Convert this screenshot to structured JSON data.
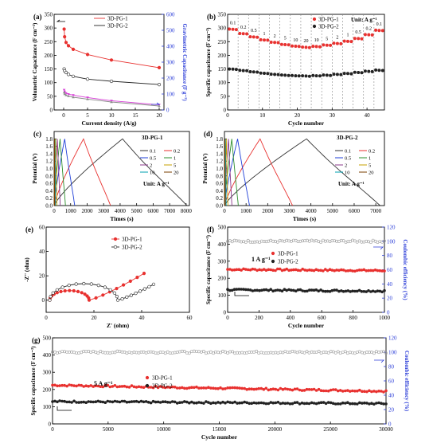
{
  "chart_data": [
    {
      "panel": "(a)",
      "type": "line",
      "xlabel": "Current density (A/g)",
      "ylabel": "Volumetric Capacitance (F cm⁻³)",
      "y2label": "Gravimetric Capacitance (F g⁻¹)",
      "xlim": [
        -2,
        21
      ],
      "ylim": [
        0,
        350
      ],
      "y2lim": [
        0,
        600
      ],
      "xticks": [
        0,
        5,
        10,
        15,
        20
      ],
      "yticks": [
        0,
        50,
        100,
        150,
        200,
        250,
        300,
        350
      ],
      "y2ticks": [
        0,
        100,
        200,
        300,
        400,
        500,
        600
      ],
      "legend": [
        "3D-PG-1",
        "3D-PG-2"
      ],
      "legend_position": "top",
      "series": [
        {
          "name": "3D-PG-1",
          "axis": "left",
          "color": "#e8312f",
          "x": [
            0.1,
            0.2,
            0.5,
            1,
            2,
            5,
            10,
            20
          ],
          "y": [
            296,
            268,
            247,
            235,
            222,
            203,
            183,
            155
          ]
        },
        {
          "name": "3D-PG-2",
          "axis": "left",
          "color": "#222222",
          "x": [
            0.1,
            0.2,
            0.5,
            1,
            2,
            5,
            10,
            20
          ],
          "y": [
            150,
            143,
            137,
            130,
            123,
            113,
            105,
            93
          ]
        },
        {
          "name": "3D-PG-1",
          "axis": "right",
          "color": "#d63bd6",
          "x": [
            0.1,
            0.2,
            0.5,
            1,
            2,
            5,
            10,
            20
          ],
          "y": [
            126,
            115,
            105,
            99,
            93,
            78,
            58,
            32
          ]
        },
        {
          "name": "3D-PG-2",
          "axis": "right",
          "color": "#8a8a8a",
          "x": [
            0.1,
            0.2,
            0.5,
            1,
            2,
            5,
            10,
            20
          ],
          "y": [
            110,
            100,
            93,
            87,
            80,
            68,
            50,
            25
          ]
        }
      ]
    },
    {
      "panel": "(b)",
      "type": "scatter",
      "xlabel": "Cycle number",
      "ylabel": "Specific capacitance (F cm⁻³)",
      "xlim": [
        0,
        45
      ],
      "ylim": [
        0,
        350
      ],
      "xticks": [
        0,
        10,
        20,
        30,
        40
      ],
      "yticks": [
        0,
        50,
        100,
        150,
        200,
        250,
        300,
        350
      ],
      "legend": [
        "3D-PG-1",
        "3D-PG-2"
      ],
      "legend_position": "top-right",
      "annotation": "Unit: A g⁻¹",
      "rate_labels": [
        "0.1",
        "0.2",
        "0.5",
        "1",
        "2",
        "5",
        "10",
        "20",
        "10",
        "5",
        "2",
        "1",
        "0.5",
        "0.2",
        "0.1"
      ],
      "series": [
        {
          "name": "3D-PG-1",
          "color": "#e8312f",
          "y_per_step": [
            296,
            280,
            268,
            257,
            248,
            240,
            234,
            230,
            233,
            238,
            244,
            252,
            262,
            276,
            292
          ]
        },
        {
          "name": "3D-PG-2",
          "color": "#222222",
          "y_per_step": [
            150,
            145,
            140,
            135,
            131,
            128,
            126,
            125,
            126,
            128,
            131,
            134,
            138,
            142,
            146
          ]
        }
      ]
    },
    {
      "panel": "(c)",
      "type": "line",
      "title": "3D-PG-1",
      "xlabel": "Times (s)",
      "ylabel": "Potential (V)",
      "xlim": [
        0,
        8200
      ],
      "ylim": [
        0,
        2.0
      ],
      "xticks": [
        0,
        1000,
        2000,
        3000,
        4000,
        5000,
        6000,
        7000,
        8000
      ],
      "yticks": [
        0.0,
        0.2,
        0.4,
        0.6,
        0.8,
        1.0,
        1.2,
        1.4,
        1.6,
        1.8
      ],
      "legend": [
        "0.1",
        "0.2",
        "0.5",
        "1",
        "2",
        "5",
        "10",
        "20"
      ],
      "annotation": "Unit: A g⁻¹",
      "series": [
        {
          "name": "0.1",
          "color": "#333333",
          "peak_time": 4150,
          "end_time": 8050
        },
        {
          "name": "0.2",
          "color": "#e8312f",
          "peak_time": 1780,
          "end_time": 3420
        },
        {
          "name": "0.5",
          "color": "#1f3fd8",
          "peak_time": 640,
          "end_time": 1250
        },
        {
          "name": "1",
          "color": "#2d8f2d",
          "peak_time": 360,
          "end_time": 690
        },
        {
          "name": "2",
          "color": "#8b3a8b",
          "peak_time": 195,
          "end_time": 370
        },
        {
          "name": "5",
          "color": "#c7a000",
          "peak_time": 90,
          "end_time": 170
        },
        {
          "name": "10",
          "color": "#00a0b0",
          "peak_time": 45,
          "end_time": 85
        },
        {
          "name": "20",
          "color": "#7a3f00",
          "peak_time": 22,
          "end_time": 42
        }
      ]
    },
    {
      "panel": "(d)",
      "type": "line",
      "title": "3D-PG-2",
      "xlabel": "Times (s)",
      "ylabel": "Potential (V)",
      "xlim": [
        0,
        7400
      ],
      "ylim": [
        0,
        2.0
      ],
      "xticks": [
        0,
        1000,
        2000,
        3000,
        4000,
        5000,
        6000,
        7000
      ],
      "yticks": [
        0.0,
        0.2,
        0.4,
        0.6,
        0.8,
        1.0,
        1.2,
        1.4,
        1.6,
        1.8
      ],
      "legend": [
        "0.1",
        "0.2",
        "0.5",
        "1",
        "2",
        "5",
        "10",
        "20"
      ],
      "annotation": "Unit: A g⁻¹",
      "series": [
        {
          "name": "0.1",
          "color": "#333333",
          "peak_time": 3800,
          "end_time": 7200
        },
        {
          "name": "0.2",
          "color": "#e8312f",
          "peak_time": 1650,
          "end_time": 3150
        },
        {
          "name": "0.5",
          "color": "#1f3fd8",
          "peak_time": 610,
          "end_time": 1160
        },
        {
          "name": "1",
          "color": "#2d8f2d",
          "peak_time": 340,
          "end_time": 640
        },
        {
          "name": "2",
          "color": "#8b3a8b",
          "peak_time": 185,
          "end_time": 345
        },
        {
          "name": "5",
          "color": "#c7a000",
          "peak_time": 85,
          "end_time": 160
        },
        {
          "name": "10",
          "color": "#00a0b0",
          "peak_time": 42,
          "end_time": 80
        },
        {
          "name": "20",
          "color": "#7a3f00",
          "peak_time": 21,
          "end_time": 40
        }
      ]
    },
    {
      "panel": "(e)",
      "type": "line",
      "xlabel": "Z' (ohm)",
      "ylabel": "-Z'' (ohm)",
      "xlim": [
        0,
        60
      ],
      "ylim": [
        -10,
        60
      ],
      "xticks": [
        0,
        20,
        40,
        60
      ],
      "yticks": [
        0,
        20,
        40,
        60
      ],
      "legend": [
        "3D-PG-1",
        "3D-PG-2"
      ],
      "legend_position": "top-right",
      "series": [
        {
          "name": "3D-PG-1",
          "color": "#e8312f",
          "semicircle": [
            1.5,
            18
          ],
          "tail_end": [
            41,
            22
          ]
        },
        {
          "name": "3D-PG-2",
          "color": "#222222",
          "semicircle": [
            1.5,
            30
          ],
          "tail_end": [
            45,
            13
          ]
        }
      ]
    },
    {
      "panel": "(f)",
      "type": "scatter",
      "xlabel": "Cycle number",
      "ylabel": "Specific capacitance (F cm⁻³)",
      "y2label": "Coulombic efficiency (%)",
      "xlim": [
        0,
        1000
      ],
      "ylim": [
        0,
        500
      ],
      "y2lim": [
        0,
        120
      ],
      "xticks": [
        0,
        200,
        400,
        600,
        800,
        1000
      ],
      "yticks": [
        0,
        100,
        200,
        300,
        400,
        500
      ],
      "y2ticks": [
        0,
        20,
        40,
        60,
        80,
        100,
        120
      ],
      "annotation": "1 A g⁻¹",
      "legend": [
        "3D-PG-1",
        "3D-PG-2"
      ],
      "series": [
        {
          "name": "3D-PG-1",
          "color": "#e8312f",
          "start": 252,
          "end": 245
        },
        {
          "name": "3D-PG-2",
          "color": "#222222",
          "start": 132,
          "end": 125
        },
        {
          "name": "efficiency",
          "color": "#999999",
          "axis": "right",
          "start": 100,
          "end": 100
        }
      ]
    },
    {
      "panel": "(g)",
      "type": "scatter",
      "xlabel": "Cycle number",
      "ylabel": "Specific capacitance (F cm⁻³)",
      "y2label": "Coulombic efficiency (%)",
      "xlim": [
        0,
        30000
      ],
      "ylim": [
        0,
        500
      ],
      "y2lim": [
        0,
        120
      ],
      "xticks": [
        0,
        5000,
        10000,
        15000,
        20000,
        25000,
        30000
      ],
      "yticks": [
        0,
        100,
        200,
        300,
        400,
        500
      ],
      "y2ticks": [
        0,
        20,
        40,
        60,
        80,
        100,
        120
      ],
      "annotation": "5 A g⁻¹",
      "legend": [
        "3D-PG-1",
        "3D-PG-2"
      ],
      "series": [
        {
          "name": "3D-PG-1",
          "color": "#e8312f",
          "start": 225,
          "end": 190
        },
        {
          "name": "3D-PG-2",
          "color": "#222222",
          "start": 130,
          "end": 118
        },
        {
          "name": "efficiency",
          "color": "#999999",
          "axis": "right",
          "start": 100,
          "end": 100
        }
      ]
    }
  ]
}
